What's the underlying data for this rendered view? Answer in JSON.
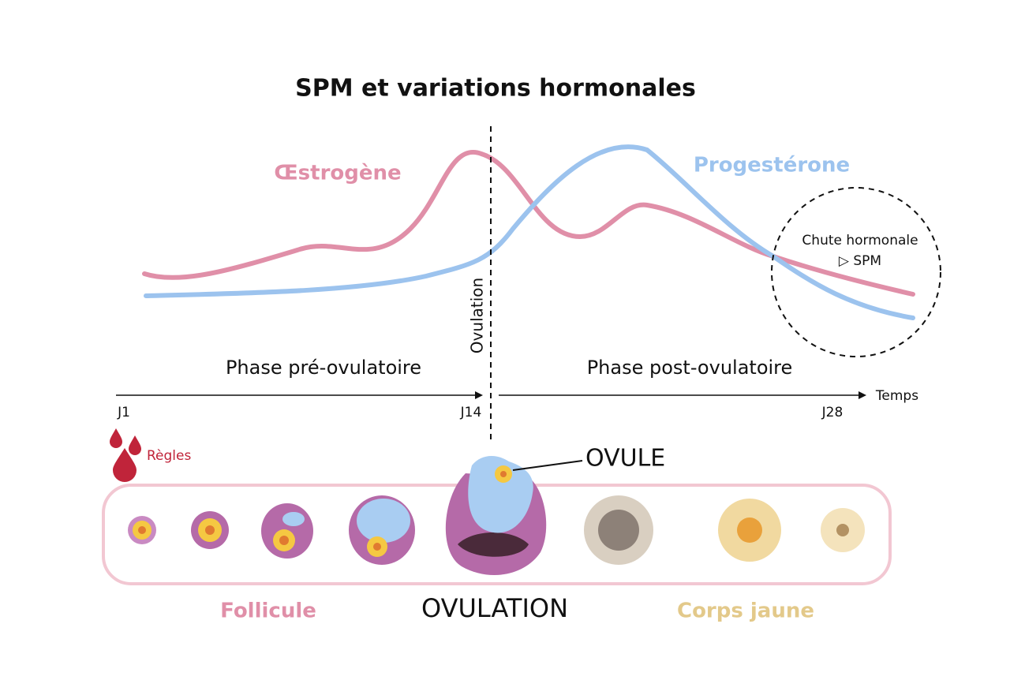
{
  "title": "SPM et variations hormonales",
  "curves": [
    {
      "label": "Œstrogène",
      "color": "#e08fa8"
    },
    {
      "label": "Progestérone",
      "color": "#9cc3ee"
    }
  ],
  "ovulation_label": "Ovulation",
  "annotation": {
    "line1": "Chute hormonale",
    "line2": "▷ SPM"
  },
  "phases": [
    "Phase pré-ovulatoire",
    "Phase post-ovulatoire"
  ],
  "timeline": {
    "axis_label": "Temps",
    "days": [
      "J1",
      "J14",
      "J28"
    ]
  },
  "menses_label": "Règles",
  "ovule_label": "OVULE",
  "stages": [
    {
      "label": "Follicule",
      "color": "#e08fa8"
    },
    {
      "label": "OVULATION",
      "color": "#111111"
    },
    {
      "label": "Corps jaune",
      "color": "#e3c98a"
    }
  ]
}
